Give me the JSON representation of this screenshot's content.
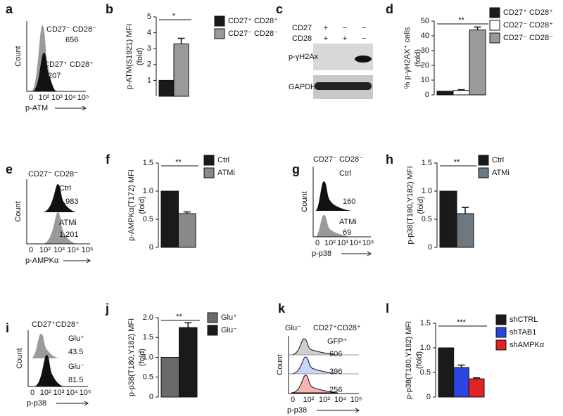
{
  "chart_data": [
    {
      "type": "bar",
      "panel": "b",
      "ylabel": [
        "p-ATM(S1921) MFI",
        "(fold)"
      ],
      "ylim": [
        0,
        5
      ],
      "yticks": [
        1,
        2,
        3,
        4,
        5
      ],
      "significance": "*",
      "series": [
        {
          "name": "CD27⁺ CD28⁺",
          "color": "#1a1a1a",
          "values": [
            1.0
          ]
        },
        {
          "name": "CD27⁻ CD28⁻",
          "color": "#9a9a9a",
          "values": [
            3.3
          ],
          "errors": [
            0.35
          ]
        }
      ]
    },
    {
      "type": "bar",
      "panel": "d",
      "ylabel": [
        "% p-γH2AX⁺ cells",
        "(fold)"
      ],
      "ylim": [
        0,
        50
      ],
      "yticks": [
        0,
        10,
        20,
        30,
        40,
        50
      ],
      "significance": "**",
      "series": [
        {
          "name": "CD27⁺ CD28⁺",
          "color": "#1a1a1a",
          "values": [
            2.5
          ]
        },
        {
          "name": "CD27⁻ CD28⁺",
          "color": "#ffffff",
          "values": [
            3
          ],
          "errors": [
            0.5
          ]
        },
        {
          "name": "CD27⁻ CD28⁻",
          "color": "#9a9a9a",
          "values": [
            44
          ],
          "errors": [
            2
          ]
        }
      ]
    },
    {
      "type": "bar",
      "panel": "f",
      "ylabel": [
        "p-AMPKα(T172) MFI",
        "(fold)"
      ],
      "ylim": [
        0,
        1.5
      ],
      "yticks": [
        0,
        0.5,
        {
          "value": 1,
          "label": "1.0"
        },
        1.5
      ],
      "significance": "**",
      "series": [
        {
          "name": "Ctrl",
          "color": "#1a1a1a",
          "values": [
            1.0
          ]
        },
        {
          "name": "ATMi",
          "color": "#8a8a8a",
          "values": [
            0.6
          ],
          "errors": [
            0.03
          ]
        }
      ]
    },
    {
      "type": "bar",
      "panel": "h",
      "ylabel": [
        "p-p38(T180,Y182) MFI",
        "(fold)"
      ],
      "ylim": [
        0,
        1.5
      ],
      "yticks": [
        0,
        0.5,
        {
          "value": 1,
          "label": "1.0"
        },
        1.5
      ],
      "significance": "**",
      "series": [
        {
          "name": "Ctrl",
          "color": "#1a1a1a",
          "values": [
            1.0
          ]
        },
        {
          "name": "ATMi",
          "color": "#6e7880",
          "values": [
            0.6
          ],
          "errors": [
            0.11
          ]
        }
      ]
    },
    {
      "type": "bar",
      "panel": "j",
      "ylabel": [
        "p-p38(T180,Y182) MFI",
        "(fold)"
      ],
      "ylim": [
        0,
        2
      ],
      "yticks": [
        0,
        0.5,
        {
          "value": 1,
          "label": "1.0"
        },
        1.5,
        {
          "value": 2,
          "label": "2.0"
        }
      ],
      "significance": "**",
      "series": [
        {
          "name": "Glu⁺",
          "color": "#6a6a6a",
          "values": [
            1.0
          ]
        },
        {
          "name": "Glu⁻",
          "color": "#1a1a1a",
          "values": [
            1.75
          ],
          "errors": [
            0.12
          ]
        }
      ]
    },
    {
      "type": "bar",
      "panel": "l",
      "ylabel": [
        "p-p38(T180,Y182) MFI",
        "(fold)"
      ],
      "ylim": [
        0,
        1.5
      ],
      "yticks": [
        0,
        0.5,
        {
          "value": 1,
          "label": "1.0"
        },
        1.5
      ],
      "significance": "***",
      "series": [
        {
          "name": "shCTRL",
          "color": "#1a1a1a",
          "values": [
            1.0
          ]
        },
        {
          "name": "shTAB1",
          "color": "#2a45e0",
          "values": [
            0.6
          ],
          "errors": [
            0.05
          ]
        },
        {
          "name": "shAMPKα",
          "color": "#e02424",
          "values": [
            0.37
          ],
          "errors": [
            0.02
          ]
        }
      ]
    }
  ],
  "flow_panels": [
    {
      "panel": "a",
      "texts": [
        "CD27⁻ CD28⁻",
        "656",
        "CD27⁺ CD28⁺",
        "207"
      ],
      "xlabel": "p-ATM",
      "ylabel": "Count",
      "xticks": [
        "0",
        "10²",
        "10³",
        "10⁴",
        "10⁵"
      ]
    },
    {
      "panel": "e",
      "title": "CD27⁻ CD28⁻",
      "texts": [
        "Ctrl",
        "1,983",
        "ATMi",
        "1,201"
      ],
      "xlabel": "p-AMPKα",
      "ylabel": "Count",
      "xticks": [
        "0",
        "10²",
        "10³",
        "10⁴",
        "10⁵"
      ]
    },
    {
      "panel": "g",
      "title": "CD27⁻ CD28⁻",
      "texts": [
        "Ctrl",
        "160",
        "ATMi",
        "69"
      ],
      "xlabel": "p-p38",
      "ylabel": "Count",
      "xticks": [
        "0",
        "10²",
        "10³",
        "10⁴",
        "10⁵"
      ]
    },
    {
      "panel": "i",
      "title": "CD27⁺CD28⁺",
      "texts": [
        "Glu⁺",
        "43.5",
        "Glu⁻",
        "81.5"
      ],
      "xlabel": "p-p38",
      "ylabel": "Count",
      "xticks": [
        "0",
        "10²",
        "10³",
        "10⁴",
        "10⁵"
      ]
    },
    {
      "panel": "k",
      "title": "Glu⁻",
      "texts": [
        "CD27⁺CD28⁺",
        "GFP⁺",
        "606",
        "396",
        "256"
      ],
      "xlabel": "p-p38",
      "ylabel": "Count",
      "xticks": [
        "0",
        "10²",
        "10³",
        "10⁴",
        "10⁵"
      ]
    }
  ],
  "blot": {
    "panel": "c",
    "rows": [
      {
        "label": "CD27",
        "lanes": [
          "+",
          "−",
          "−"
        ]
      },
      {
        "label": "CD28",
        "lanes": [
          "+",
          "+",
          "−"
        ]
      }
    ],
    "bands": [
      "p-γH2Ax",
      "GAPDH"
    ]
  }
}
